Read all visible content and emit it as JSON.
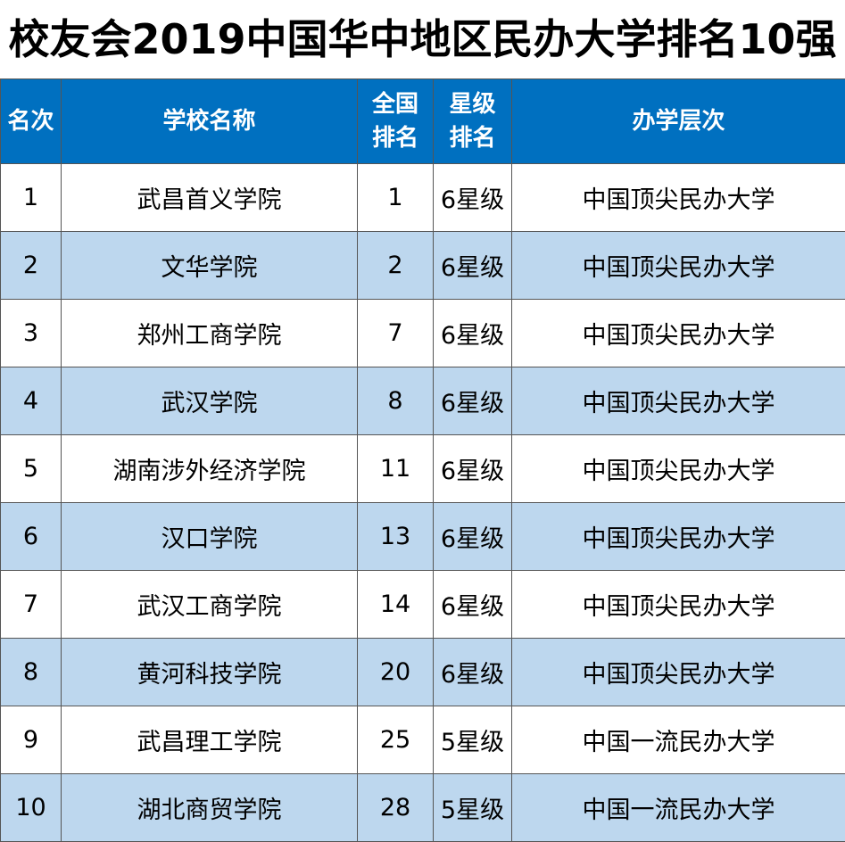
{
  "title": "校友会2019中国华中地区民办大学排名10强",
  "headers": {
    "rank": "名次",
    "school": "学校名称",
    "national_line1": "全国",
    "national_line2": "排名",
    "star_line1": "星级",
    "star_line2": "排名",
    "level": "办学层次"
  },
  "rows": [
    {
      "rank": "1",
      "school": "武昌首义学院",
      "national": "1",
      "star": "6星级",
      "level": "中国顶尖民办大学"
    },
    {
      "rank": "2",
      "school": "文华学院",
      "national": "2",
      "star": "6星级",
      "level": "中国顶尖民办大学"
    },
    {
      "rank": "3",
      "school": "郑州工商学院",
      "national": "7",
      "star": "6星级",
      "level": "中国顶尖民办大学"
    },
    {
      "rank": "4",
      "school": "武汉学院",
      "national": "8",
      "star": "6星级",
      "level": "中国顶尖民办大学"
    },
    {
      "rank": "5",
      "school": "湖南涉外经济学院",
      "national": "11",
      "star": "6星级",
      "level": "中国顶尖民办大学"
    },
    {
      "rank": "6",
      "school": "汉口学院",
      "national": "13",
      "star": "6星级",
      "level": "中国顶尖民办大学"
    },
    {
      "rank": "7",
      "school": "武汉工商学院",
      "national": "14",
      "star": "6星级",
      "level": "中国顶尖民办大学"
    },
    {
      "rank": "8",
      "school": "黄河科技学院",
      "national": "20",
      "star": "6星级",
      "level": "中国顶尖民办大学"
    },
    {
      "rank": "9",
      "school": "武昌理工学院",
      "national": "25",
      "star": "5星级",
      "level": "中国一流民办大学"
    },
    {
      "rank": "10",
      "school": "湖北商贸学院",
      "national": "28",
      "star": "5星级",
      "level": "中国一流民办大学"
    }
  ],
  "colors": {
    "header_bg": "#0070c0",
    "header_text": "#ffffff",
    "alt_row_bg": "#bdd7ee",
    "row_bg": "#ffffff"
  }
}
